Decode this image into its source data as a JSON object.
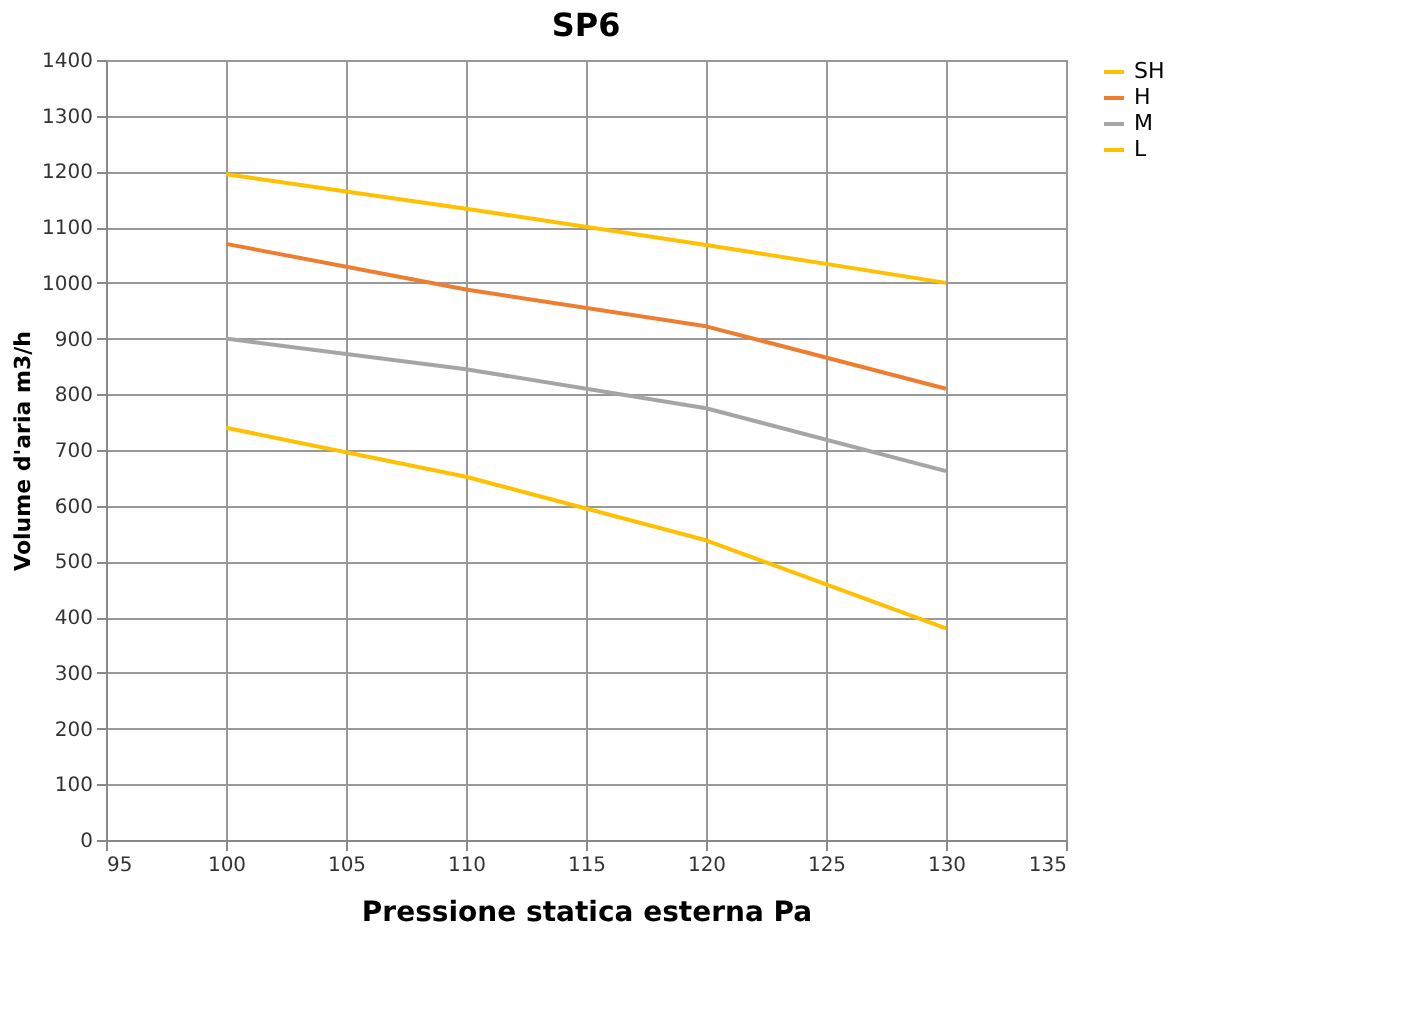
{
  "chart_data": {
    "type": "line",
    "title": "SP6",
    "xlabel": "Pressione statica esterna Pa",
    "ylabel": "Volume d'aria m3/h",
    "x": [
      100,
      110,
      120,
      130
    ],
    "series": [
      {
        "name": "SH",
        "color": "#ffc000",
        "values": [
          1195,
          1133,
          1068,
          1000
        ]
      },
      {
        "name": "H",
        "color": "#ed7d31",
        "values": [
          1070,
          988,
          922,
          810
        ]
      },
      {
        "name": "M",
        "color": "#a5a5a5",
        "values": [
          900,
          845,
          775,
          662
        ]
      },
      {
        "name": "L",
        "color": "#ffc000",
        "values": [
          740,
          652,
          538,
          380
        ]
      }
    ],
    "xlim": [
      95,
      135
    ],
    "xticks": [
      95,
      100,
      105,
      110,
      115,
      120,
      125,
      130,
      135
    ],
    "ylim": [
      0,
      1400
    ],
    "yticks": [
      0,
      100,
      200,
      300,
      400,
      500,
      600,
      700,
      800,
      900,
      1000,
      1100,
      1200,
      1300,
      1400
    ],
    "grid": true,
    "legend": "top right",
    "marker": "none",
    "line_style": "solid"
  }
}
